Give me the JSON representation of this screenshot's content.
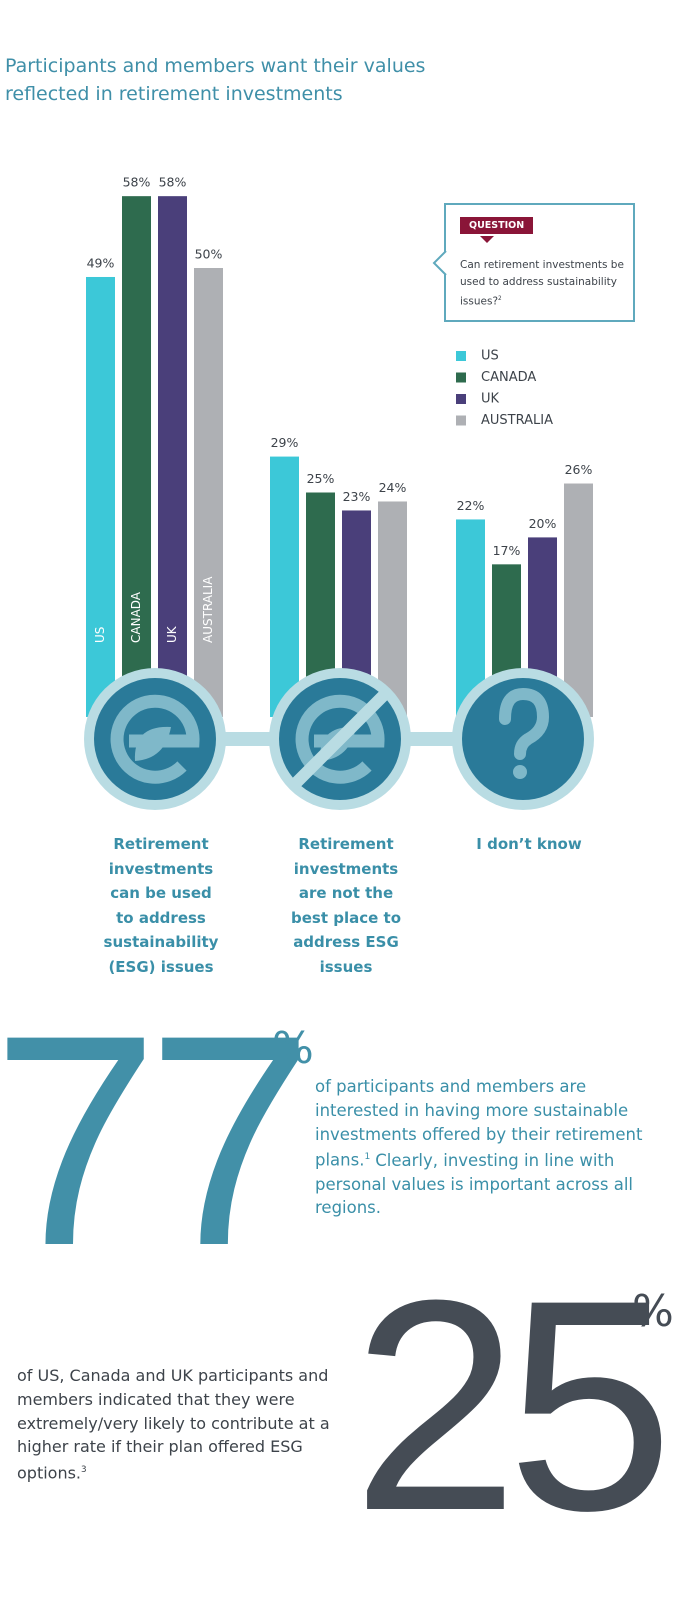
{
  "chart_data": {
    "type": "bar",
    "title": "Participants and members want their values reflected in retirement investments",
    "categories": [
      "Retirement investments can be used to address sustainability (ESG) issues",
      "Retirement investments are not the best place to address ESG issues",
      "I don’t know"
    ],
    "series": [
      {
        "name": "US",
        "color": "#3cc8d8",
        "values": [
          49,
          29,
          22
        ],
        "value_labels": [
          "49%",
          "29%",
          "22%"
        ]
      },
      {
        "name": "CANADA",
        "color": "#2e6b4e",
        "values": [
          58,
          25,
          17
        ],
        "value_labels": [
          "58%",
          "25%",
          "17%"
        ]
      },
      {
        "name": "UK",
        "color": "#4a3f7a",
        "values": [
          58,
          23,
          20
        ],
        "value_labels": [
          "58%",
          "23%",
          "20%"
        ]
      },
      {
        "name": "AUSTRALIA",
        "color": "#aeb0b4",
        "values": [
          50,
          24,
          26
        ],
        "value_labels": [
          "50%",
          "24%",
          "26%"
        ]
      }
    ],
    "legend": "top-right",
    "annotation": {
      "tag": "QUESTION",
      "text": "Can retirement investments be used to address sustainability issues?",
      "footnote": "2"
    }
  },
  "stats": [
    {
      "value": 77,
      "unit": "%",
      "text": "of participants and members are interested in having more sustainable investments offered by their retirement plans.",
      "footnote": "1",
      "text_after": "Clearly, investing in line with personal values is important across all regions."
    },
    {
      "value": 25,
      "unit": "%",
      "text": "of US, Canada and UK participants and members indicated that they were extremely/very likely to contribute at a higher rate if their plan offered ESG options.",
      "footnote": "3"
    }
  ]
}
